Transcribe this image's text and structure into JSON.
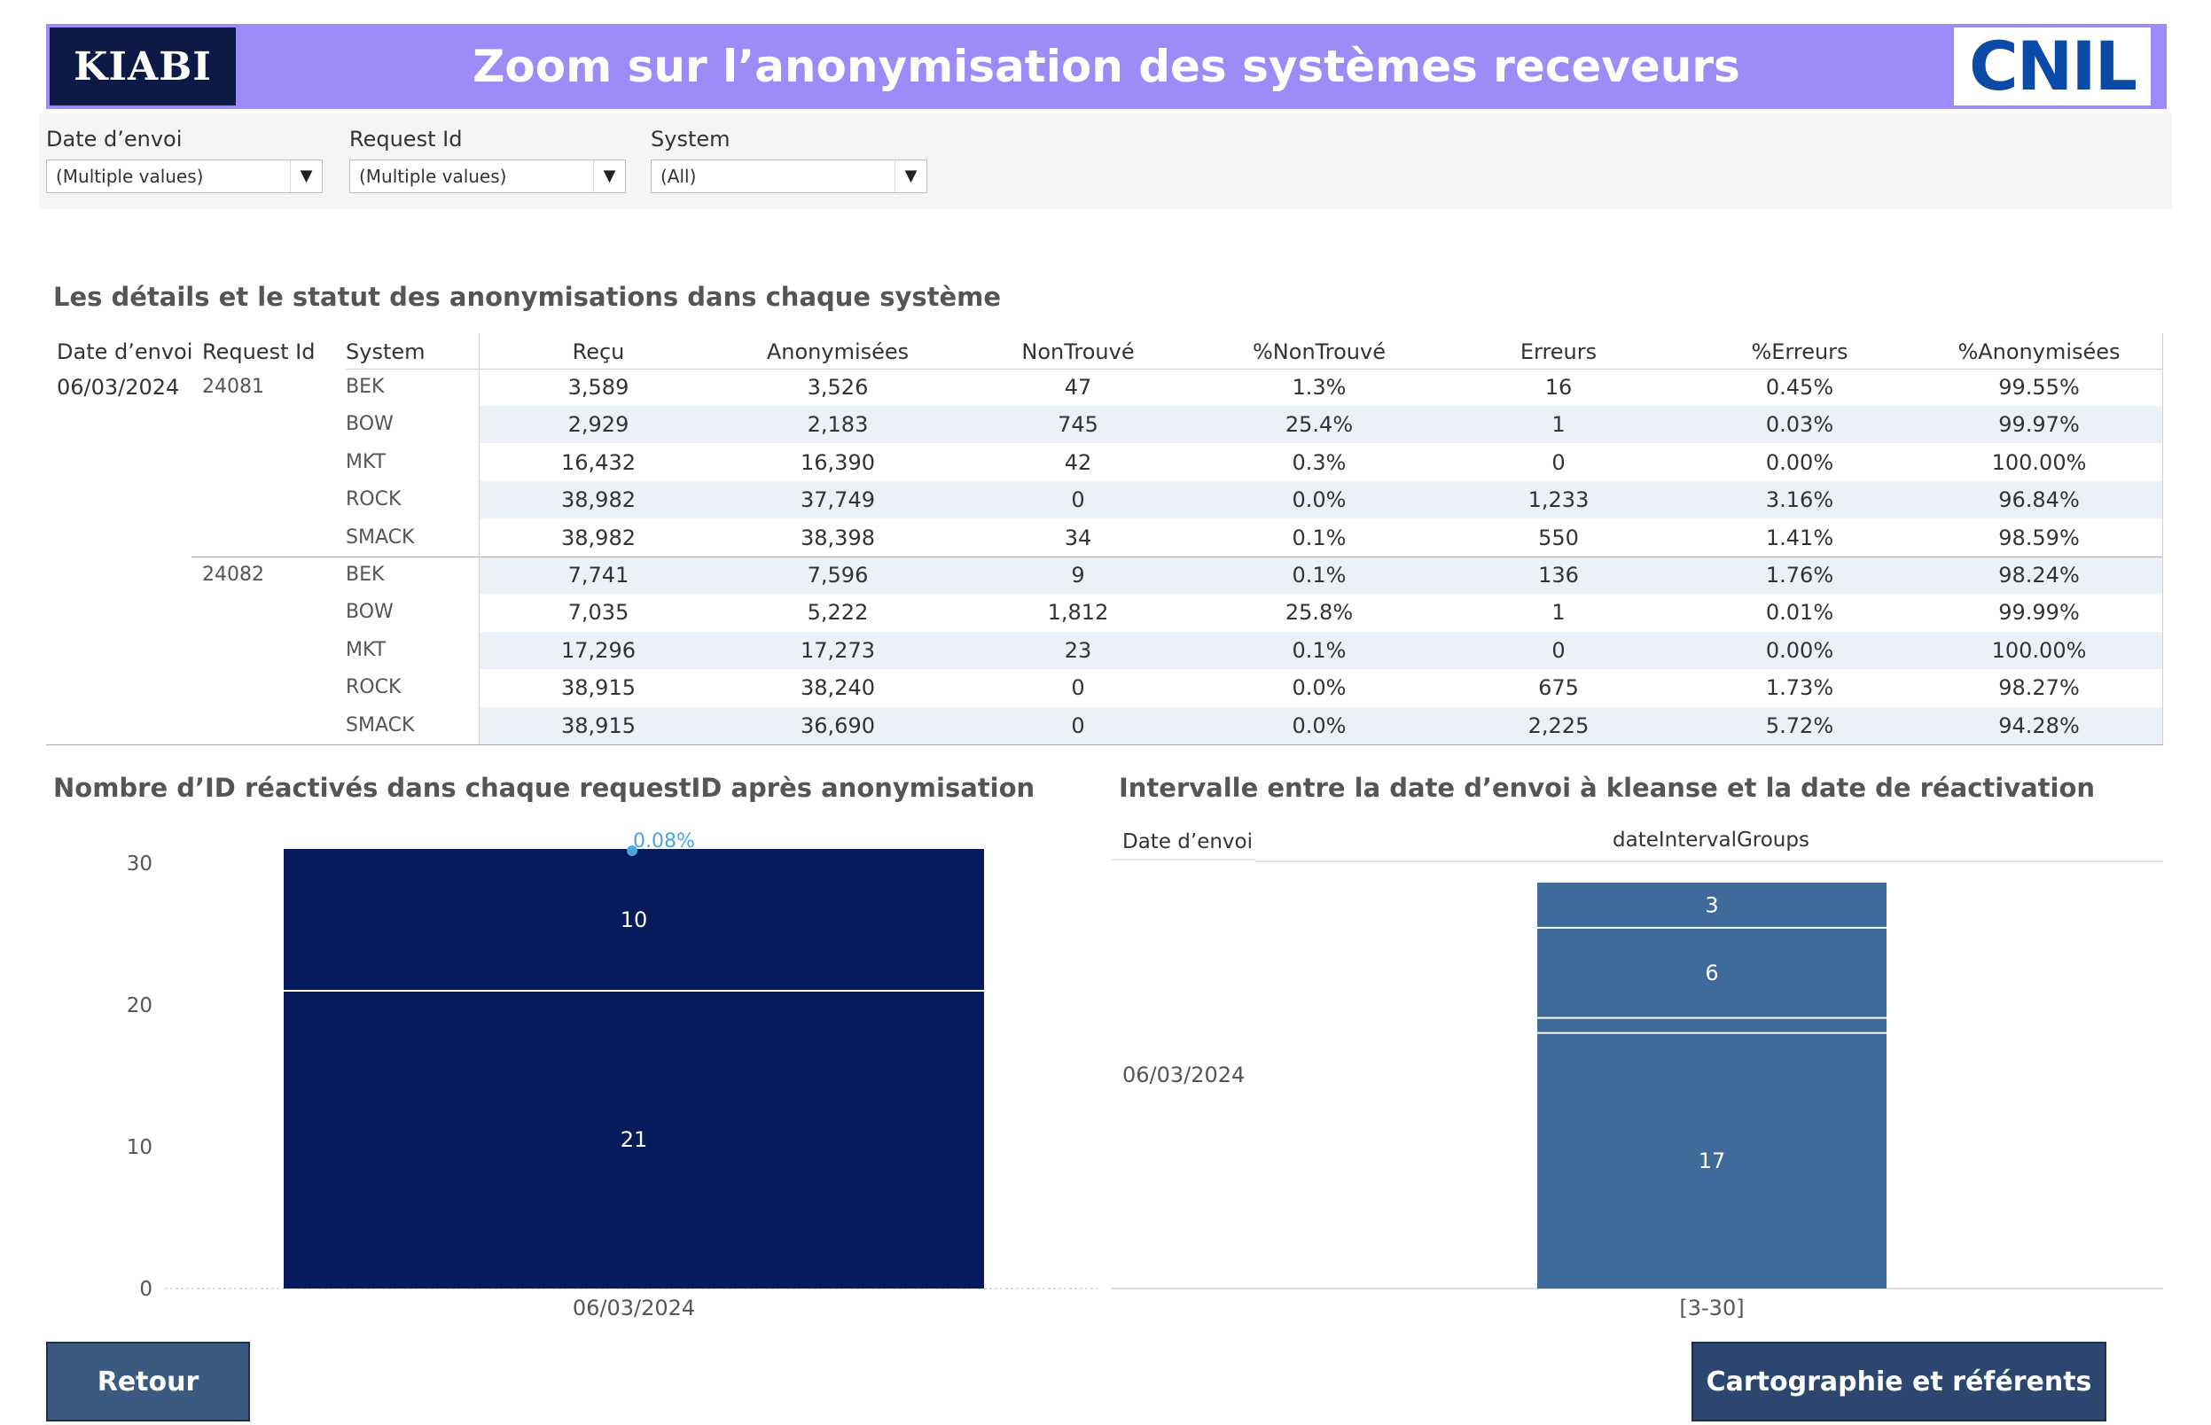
{
  "header": {
    "title": "Zoom sur l’anonymisation des systèmes receveurs",
    "left_logo_text": "KIABI",
    "right_logo_text": "CNIL"
  },
  "filters": [
    {
      "label": "Date d’envoi",
      "value": "(Multiple values)"
    },
    {
      "label": "Request Id",
      "value": "(Multiple values)"
    },
    {
      "label": "System",
      "value": "(All)"
    }
  ],
  "details": {
    "title": "Les détails et le statut des anonymisations dans chaque système",
    "headers": [
      "Date d’envoi",
      "Request Id",
      "System",
      "Reçu",
      "Anonymisées",
      "NonTrouvé",
      "%NonTrouvé",
      "Erreurs",
      "%Erreurs",
      "%Anonymisées"
    ],
    "date": "06/03/2024",
    "groups": [
      {
        "request_id": "24081",
        "rows": [
          {
            "system": "BEK",
            "recu": "3,589",
            "anon": "3,526",
            "nontrouve": "47",
            "pct_nontrouve": "1.3%",
            "erreurs": "16",
            "pct_erreurs": "0.45%",
            "pct_anon": "99.55%"
          },
          {
            "system": "BOW",
            "recu": "2,929",
            "anon": "2,183",
            "nontrouve": "745",
            "pct_nontrouve": "25.4%",
            "erreurs": "1",
            "pct_erreurs": "0.03%",
            "pct_anon": "99.97%"
          },
          {
            "system": "MKT",
            "recu": "16,432",
            "anon": "16,390",
            "nontrouve": "42",
            "pct_nontrouve": "0.3%",
            "erreurs": "0",
            "pct_erreurs": "0.00%",
            "pct_anon": "100.00%"
          },
          {
            "system": "ROCK",
            "recu": "38,982",
            "anon": "37,749",
            "nontrouve": "0",
            "pct_nontrouve": "0.0%",
            "erreurs": "1,233",
            "pct_erreurs": "3.16%",
            "pct_anon": "96.84%"
          },
          {
            "system": "SMACK",
            "recu": "38,982",
            "anon": "38,398",
            "nontrouve": "34",
            "pct_nontrouve": "0.1%",
            "erreurs": "550",
            "pct_erreurs": "1.41%",
            "pct_anon": "98.59%"
          }
        ]
      },
      {
        "request_id": "24082",
        "rows": [
          {
            "system": "BEK",
            "recu": "7,741",
            "anon": "7,596",
            "nontrouve": "9",
            "pct_nontrouve": "0.1%",
            "erreurs": "136",
            "pct_erreurs": "1.76%",
            "pct_anon": "98.24%"
          },
          {
            "system": "BOW",
            "recu": "7,035",
            "anon": "5,222",
            "nontrouve": "1,812",
            "pct_nontrouve": "25.8%",
            "erreurs": "1",
            "pct_erreurs": "0.01%",
            "pct_anon": "99.99%"
          },
          {
            "system": "MKT",
            "recu": "17,296",
            "anon": "17,273",
            "nontrouve": "23",
            "pct_nontrouve": "0.1%",
            "erreurs": "0",
            "pct_erreurs": "0.00%",
            "pct_anon": "100.00%"
          },
          {
            "system": "ROCK",
            "recu": "38,915",
            "anon": "38,240",
            "nontrouve": "0",
            "pct_nontrouve": "0.0%",
            "erreurs": "675",
            "pct_erreurs": "1.73%",
            "pct_anon": "98.27%"
          },
          {
            "system": "SMACK",
            "recu": "38,915",
            "anon": "36,690",
            "nontrouve": "0",
            "pct_nontrouve": "0.0%",
            "erreurs": "2,225",
            "pct_erreurs": "5.72%",
            "pct_anon": "94.28%"
          }
        ]
      }
    ]
  },
  "chart_data": [
    {
      "type": "bar",
      "stacked": true,
      "title": "Nombre d’ID réactivés dans chaque requestID après anonymisation",
      "categories": [
        "06/03/2024"
      ],
      "series": [
        {
          "values": [
            21
          ]
        },
        {
          "values": [
            10
          ]
        }
      ],
      "annotation": "0.08%",
      "ylim": [
        0,
        31
      ],
      "yticks": [
        0,
        10,
        20,
        30
      ],
      "bar_color": "#071b5c",
      "annotation_color": "#4ba3e3"
    },
    {
      "type": "bar",
      "stacked": true,
      "title": "Intervalle entre la date d’envoi à kleanse et la date de réactivation",
      "row_header": "Date d’envoi",
      "column_header": "dateIntervalGroups",
      "row_label": "06/03/2024",
      "categories": [
        "[3-30]"
      ],
      "series": [
        {
          "values": [
            17
          ]
        },
        {
          "values": [
            1
          ]
        },
        {
          "values": [
            6
          ]
        },
        {
          "values": [
            3
          ]
        }
      ],
      "segment_labels": [
        "17",
        "",
        "6",
        "3"
      ],
      "ylim": [
        0,
        27
      ],
      "bar_color": "#3e6b99"
    }
  ],
  "buttons": {
    "back": "Retour",
    "cartography": "Cartographie et référents"
  },
  "colors": {
    "header_bg": "#9d8cf8",
    "button_back": "#3a5a80",
    "button_carto": "#2c4670"
  }
}
